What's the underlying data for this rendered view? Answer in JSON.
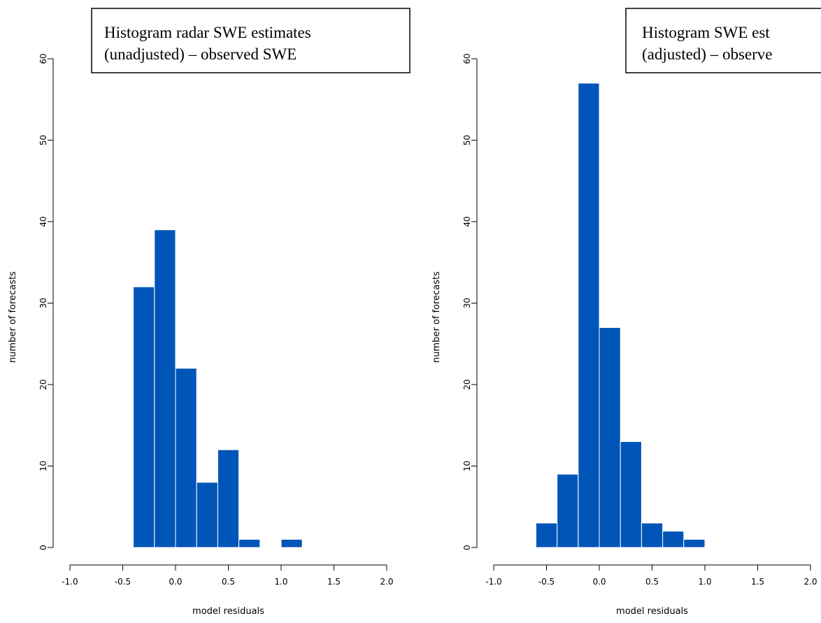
{
  "chart_data": [
    {
      "type": "bar",
      "title_lines": [
        "Histogram radar SWE estimates",
        "(unadjusted) – observed SWE"
      ],
      "xlabel": "model residuals",
      "ylabel": "number of forecasts",
      "xlim": [
        -1.0,
        2.0
      ],
      "ylim": [
        0,
        60
      ],
      "x_ticks": [
        "-1.0",
        "-0.5",
        "0.0",
        "0.5",
        "1.0",
        "1.5",
        "2.0"
      ],
      "y_ticks": [
        "0",
        "10",
        "20",
        "30",
        "40",
        "50",
        "60"
      ],
      "bars": [
        {
          "x0": -0.4,
          "x1": -0.2,
          "count": 32
        },
        {
          "x0": -0.2,
          "x1": 0.0,
          "count": 39
        },
        {
          "x0": 0.0,
          "x1": 0.2,
          "count": 22
        },
        {
          "x0": 0.2,
          "x1": 0.4,
          "count": 8
        },
        {
          "x0": 0.4,
          "x1": 0.6,
          "count": 12
        },
        {
          "x0": 0.6,
          "x1": 0.8,
          "count": 1
        },
        {
          "x0": 1.0,
          "x1": 1.2,
          "count": 1
        }
      ],
      "bar_color": "#0055b8",
      "grid": false,
      "legend": "none"
    },
    {
      "type": "bar",
      "title_lines": [
        "Histogram SWE est",
        "(adjusted) – observe"
      ],
      "xlabel": "model residuals",
      "ylabel": "number of forecasts",
      "xlim": [
        -1.0,
        2.0
      ],
      "ylim": [
        0,
        60
      ],
      "x_ticks": [
        "-1.0",
        "-0.5",
        "0.0",
        "0.5",
        "1.0",
        "1.5",
        "2.0"
      ],
      "y_ticks": [
        "0",
        "10",
        "20",
        "30",
        "40",
        "50",
        "60"
      ],
      "bars": [
        {
          "x0": -0.6,
          "x1": -0.4,
          "count": 3
        },
        {
          "x0": -0.4,
          "x1": -0.2,
          "count": 9
        },
        {
          "x0": -0.2,
          "x1": 0.0,
          "count": 57
        },
        {
          "x0": 0.0,
          "x1": 0.2,
          "count": 27
        },
        {
          "x0": 0.2,
          "x1": 0.4,
          "count": 13
        },
        {
          "x0": 0.4,
          "x1": 0.6,
          "count": 3
        },
        {
          "x0": 0.6,
          "x1": 0.8,
          "count": 2
        },
        {
          "x0": 0.8,
          "x1": 1.0,
          "count": 1
        }
      ],
      "bar_color": "#0055b8",
      "grid": false,
      "legend": "none"
    }
  ]
}
